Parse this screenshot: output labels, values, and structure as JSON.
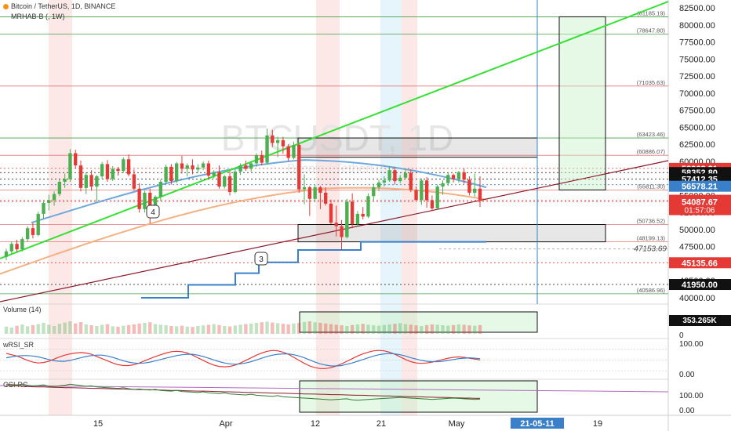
{
  "header": {
    "symbol_line": "Bitcoin / TetherUS, 1D, BINANCE",
    "indicator": "MRHAB-B (, 1W)"
  },
  "watermark": {
    "ticker": "BTCUSDT, 1D",
    "name": "Bitcoin / TetherUS"
  },
  "colors": {
    "bg": "#ffffff",
    "up": "#4caf50",
    "down": "#e53935",
    "trend_green": "#33e033",
    "trend_dark": "#8b1a2b",
    "blue_step": "#3a7fc9",
    "ma_orange": "#f4b183",
    "ref_red": "#e53935",
    "ref_green": "#43a047"
  },
  "chart_data": [
    {
      "type": "candlestick",
      "title": "Bitcoin / TetherUS, 1D, BINANCE",
      "x_ticks": [
        "15",
        "Apr",
        "12",
        "21",
        "May",
        "21-05-11",
        "19"
      ],
      "y_ticks": [
        "82500.00",
        "80000.00",
        "77500.00",
        "75000.00",
        "72500.00",
        "70000.00",
        "67500.00",
        "65000.00",
        "62500.00",
        "60000.00",
        "57500.00",
        "55000.00",
        "52500.00",
        "50000.00",
        "47500.00",
        "45000.00",
        "42500.00",
        "40000.00"
      ],
      "ylim": [
        39600,
        83000
      ],
      "n_bars": 90,
      "ohlc": [
        [
          46000,
          47200,
          45500,
          46800
        ],
        [
          46800,
          48200,
          46300,
          47900
        ],
        [
          47900,
          48500,
          46700,
          47100
        ],
        [
          47100,
          48900,
          46800,
          48600
        ],
        [
          48600,
          50500,
          48200,
          50200
        ],
        [
          50200,
          51000,
          48700,
          49200
        ],
        [
          49200,
          52600,
          49000,
          52300
        ],
        [
          52300,
          54200,
          51600,
          53900
        ],
        [
          53900,
          55100,
          52800,
          54300
        ],
        [
          54300,
          55600,
          53500,
          55200
        ],
        [
          55200,
          57300,
          54900,
          57000
        ],
        [
          57000,
          58200,
          56100,
          57400
        ],
        [
          57400,
          61800,
          57000,
          61200
        ],
        [
          61200,
          61700,
          58900,
          59400
        ],
        [
          59400,
          60100,
          55600,
          56100
        ],
        [
          56100,
          58400,
          55200,
          58000
        ],
        [
          58000,
          58700,
          55700,
          56300
        ],
        [
          56300,
          58000,
          54000,
          57800
        ],
        [
          57800,
          59900,
          57400,
          59600
        ],
        [
          59600,
          60200,
          57000,
          57400
        ],
        [
          57400,
          59300,
          57100,
          58900
        ],
        [
          58900,
          59200,
          57900,
          58600
        ],
        [
          58600,
          60600,
          58300,
          60300
        ],
        [
          60300,
          61000,
          57800,
          58100
        ],
        [
          58100,
          58800,
          55700,
          56000
        ],
        [
          56000,
          56800,
          52500,
          53000
        ],
        [
          53000,
          55700,
          52500,
          55400
        ],
        [
          55400,
          56000,
          50900,
          52100
        ],
        [
          52100,
          55000,
          51800,
          54800
        ],
        [
          54800,
          57300,
          54200,
          57000
        ],
        [
          57000,
          59500,
          56700,
          59200
        ],
        [
          59200,
          59600,
          56600,
          57100
        ],
        [
          57100,
          59900,
          56800,
          59700
        ],
        [
          59700,
          60800,
          58200,
          58900
        ],
        [
          58900,
          59700,
          57800,
          59400
        ],
        [
          59400,
          60300,
          58100,
          58800
        ],
        [
          58800,
          59600,
          58300,
          59100
        ],
        [
          59100,
          60000,
          58700,
          59700
        ],
        [
          59700,
          60100,
          57300,
          57900
        ],
        [
          57900,
          58700,
          57500,
          58400
        ],
        [
          58400,
          59400,
          56000,
          56300
        ],
        [
          56300,
          58000,
          56000,
          57800
        ],
        [
          57800,
          58600,
          55000,
          55500
        ],
        [
          55500,
          58800,
          55300,
          58500
        ],
        [
          58500,
          59700,
          58000,
          59400
        ],
        [
          59400,
          60100,
          58600,
          58900
        ],
        [
          58900,
          60000,
          58500,
          59700
        ],
        [
          59700,
          61200,
          59200,
          60900
        ],
        [
          60900,
          61600,
          59400,
          59800
        ],
        [
          59800,
          64800,
          59500,
          63800
        ],
        [
          63800,
          64600,
          62100,
          62700
        ],
        [
          62700,
          63600,
          60600,
          63100
        ],
        [
          63100,
          63600,
          61100,
          62200
        ],
        [
          62200,
          62500,
          60000,
          60500
        ],
        [
          60500,
          62900,
          60300,
          62400
        ],
        [
          62400,
          62600,
          55400,
          55900
        ],
        [
          55900,
          58100,
          53700,
          56200
        ],
        [
          56200,
          56400,
          52000,
          54500
        ],
        [
          54500,
          56600,
          54000,
          56200
        ],
        [
          56200,
          56400,
          53000,
          55400
        ],
        [
          55400,
          56200,
          53500,
          53800
        ],
        [
          53800,
          54400,
          50800,
          51000
        ],
        [
          51000,
          53500,
          49000,
          50500
        ],
        [
          50500,
          51400,
          47000,
          48900
        ],
        [
          48900,
          54500,
          48700,
          54100
        ],
        [
          54100,
          55300,
          50200,
          50800
        ],
        [
          50800,
          52700,
          50600,
          52300
        ],
        [
          52300,
          53300,
          51500,
          51900
        ],
        [
          51900,
          55300,
          51700,
          54900
        ],
        [
          54900,
          56700,
          54200,
          56200
        ],
        [
          56200,
          57300,
          55600,
          56900
        ],
        [
          56900,
          57800,
          56300,
          57200
        ],
        [
          57200,
          59300,
          57000,
          58700
        ],
        [
          58700,
          59200,
          56600,
          57100
        ],
        [
          57100,
          58000,
          56800,
          57600
        ],
        [
          57600,
          58900,
          57400,
          58300
        ],
        [
          58300,
          58800,
          55500,
          55800
        ],
        [
          55800,
          56300,
          54400,
          54300
        ],
        [
          54300,
          57500,
          53600,
          57200
        ],
        [
          57200,
          57700,
          53200,
          54300
        ],
        [
          54300,
          55000,
          52700,
          53100
        ],
        [
          53100,
          56600,
          52900,
          56300
        ],
        [
          56300,
          57200,
          55100,
          56800
        ],
        [
          56800,
          58400,
          56400,
          58000
        ],
        [
          58000,
          58200,
          56900,
          57400
        ],
        [
          57400,
          58600,
          56900,
          58400
        ],
        [
          58400,
          59000,
          56700,
          57300
        ],
        [
          57300,
          57800,
          55000,
          55400
        ],
        [
          55400,
          58200,
          54800,
          56000
        ],
        [
          56000,
          57800,
          53300,
          54200
        ]
      ],
      "price_labels": [
        {
          "value": 58968.31,
          "text": "58968.31",
          "color": "#e53935",
          "text_color": "#ffffff",
          "role": "bars high"
        },
        {
          "value": 58352.8,
          "text": "58352.80",
          "color": "#111111",
          "text_color": "#ffffff",
          "role": "level"
        },
        {
          "value": 57412.35,
          "text": "57412.35",
          "color": "#111111",
          "text_color": "#ffffff",
          "role": "level"
        },
        {
          "value": 56578.21,
          "text": "56578.21",
          "color": "#3a7fc9",
          "text_color": "#ffffff",
          "role": "band"
        },
        {
          "value": 54296.81,
          "text": "54296.81",
          "color": "#e53935",
          "text_color": "#ffffff",
          "role": "last price",
          "countdown": "01:57:06"
        },
        {
          "value": 54087.67,
          "text": "54087.67",
          "color": "#e53935",
          "text_color": "#ffffff",
          "role": "level"
        },
        {
          "value": 45135.66,
          "text": "45135.66",
          "color": "#e53935",
          "text_color": "#ffffff",
          "role": "level"
        },
        {
          "value": 41950.0,
          "text": "41950.00",
          "color": "#111111",
          "text_color": "#ffffff",
          "role": "level"
        }
      ],
      "fib_levels": [
        {
          "value": 81185.19,
          "text": "(81185.19)"
        },
        {
          "value": 78647.8,
          "text": "(78647.80)"
        },
        {
          "value": 71035.63,
          "text": "(71035.63)"
        },
        {
          "value": 63423.46,
          "text": "(63423.46)"
        },
        {
          "value": 60886.07,
          "text": "(60886.07)"
        },
        {
          "value": 55811.3,
          "text": "(55811.30)"
        },
        {
          "value": 50736.52,
          "text": "(50736.52)"
        },
        {
          "value": 48199.13,
          "text": "(48199.13)"
        },
        {
          "value": 40586.96,
          "text": "(40586.96)"
        }
      ],
      "low_mark": {
        "value": 47153.69,
        "text": "47153.69"
      },
      "wave_labels": [
        "4",
        "3"
      ]
    },
    {
      "type": "histogram",
      "title": "Volume (14)",
      "value_label": "353.265K",
      "y_ticks": [
        "0"
      ],
      "values": [
        45,
        40,
        52,
        60,
        48,
        55,
        62,
        70,
        58,
        50,
        64,
        72,
        80,
        66,
        75,
        60,
        55,
        50,
        58,
        62,
        48,
        45,
        52,
        56,
        60,
        66,
        70,
        74,
        62,
        58,
        55,
        50,
        48,
        52,
        46,
        44,
        50,
        54,
        58,
        62,
        56,
        50,
        47,
        53,
        58,
        62,
        66,
        70,
        74,
        78,
        72,
        68,
        64,
        60,
        66,
        70,
        76,
        80,
        74,
        70,
        66,
        62,
        58,
        54,
        50,
        56,
        60,
        64,
        58,
        54,
        52,
        56,
        60,
        64,
        68,
        62,
        58,
        54,
        50,
        56,
        60,
        58,
        55,
        52,
        56,
        60,
        58,
        54,
        52,
        56
      ]
    },
    {
      "type": "line",
      "title": "wRSI_SR",
      "y_ticks": [
        "100.00",
        "0.00"
      ],
      "ylim": [
        -25,
        120
      ],
      "series": [
        {
          "values": [
            80,
            74,
            68,
            58,
            48,
            40,
            36,
            38,
            44,
            54,
            64,
            72,
            78,
            82,
            84,
            82,
            76,
            66,
            56,
            46,
            36,
            28,
            24,
            24,
            28,
            36,
            46,
            56,
            66,
            74,
            82,
            88,
            90,
            88,
            82,
            72,
            60,
            48,
            36,
            26,
            20,
            18,
            20,
            26,
            36,
            48,
            60,
            72,
            82,
            90,
            94,
            92,
            86,
            76,
            62,
            48,
            34,
            22,
            14,
            10,
            10,
            14,
            22,
            32,
            44,
            56,
            68,
            78,
            86,
            92,
            94,
            92,
            86,
            76,
            64,
            52,
            42,
            36,
            34,
            36,
            40,
            46,
            52,
            58,
            62,
            64,
            62,
            58,
            54,
            50
          ]
        },
        {
          "values": [
            60,
            64,
            68,
            70,
            70,
            68,
            64,
            58,
            52,
            46,
            44,
            44,
            48,
            54,
            60,
            66,
            70,
            72,
            72,
            68,
            62,
            54,
            46,
            40,
            36,
            34,
            36,
            40,
            46,
            52,
            58,
            64,
            70,
            74,
            76,
            76,
            72,
            66,
            58,
            50,
            42,
            36,
            32,
            30,
            32,
            36,
            42,
            50,
            58,
            66,
            72,
            76,
            78,
            78,
            74,
            68,
            60,
            50,
            40,
            32,
            26,
            22,
            22,
            24,
            30,
            36,
            44,
            52,
            60,
            68,
            74,
            78,
            80,
            78,
            74,
            68,
            60,
            54,
            48,
            44,
            42,
            42,
            44,
            48,
            52,
            56,
            58,
            60,
            58,
            56
          ]
        }
      ]
    },
    {
      "type": "line",
      "title": "CCI-RC",
      "y_ticks": [
        "100.00",
        "0.00"
      ],
      "ylim": [
        -20,
        160
      ],
      "series": [
        {
          "values": [
            140,
            142,
            140,
            138,
            136,
            135,
            134,
            134,
            133,
            132,
            131,
            130,
            130,
            129,
            128,
            127,
            126,
            126,
            125,
            124,
            123,
            122,
            122,
            121,
            120,
            119,
            118,
            118,
            117,
            116,
            115,
            114,
            114,
            113,
            112,
            111,
            110,
            110,
            109,
            108,
            107,
            106,
            106,
            105,
            104,
            103,
            102,
            102,
            101,
            100,
            99,
            98,
            98,
            97,
            96,
            95,
            94,
            94,
            93,
            92,
            91,
            90,
            90,
            89,
            88,
            87,
            86,
            86,
            85,
            84,
            83,
            82,
            82,
            81,
            80,
            79,
            78,
            78,
            77,
            76,
            75,
            74,
            74,
            73,
            72,
            71,
            70,
            70,
            69,
            68
          ]
        },
        {
          "values": [
            150,
            148,
            146,
            150,
            144,
            140,
            142,
            146,
            138,
            136,
            140,
            144,
            150,
            146,
            142,
            138,
            140,
            134,
            132,
            130,
            128,
            126,
            130,
            124,
            120,
            122,
            118,
            116,
            120,
            114,
            112,
            110,
            114,
            108,
            106,
            104,
            102,
            106,
            100,
            98,
            96,
            100,
            94,
            92,
            90,
            88,
            92,
            86,
            84,
            82,
            80,
            84,
            78,
            76,
            74,
            72,
            70,
            68,
            66,
            64,
            62,
            60,
            62,
            64,
            66,
            60,
            58,
            60,
            62,
            64,
            66,
            68,
            70,
            72,
            74,
            72,
            70,
            68,
            66,
            64,
            62,
            64,
            66,
            68,
            70,
            68,
            66,
            64,
            62,
            64
          ]
        }
      ]
    }
  ]
}
